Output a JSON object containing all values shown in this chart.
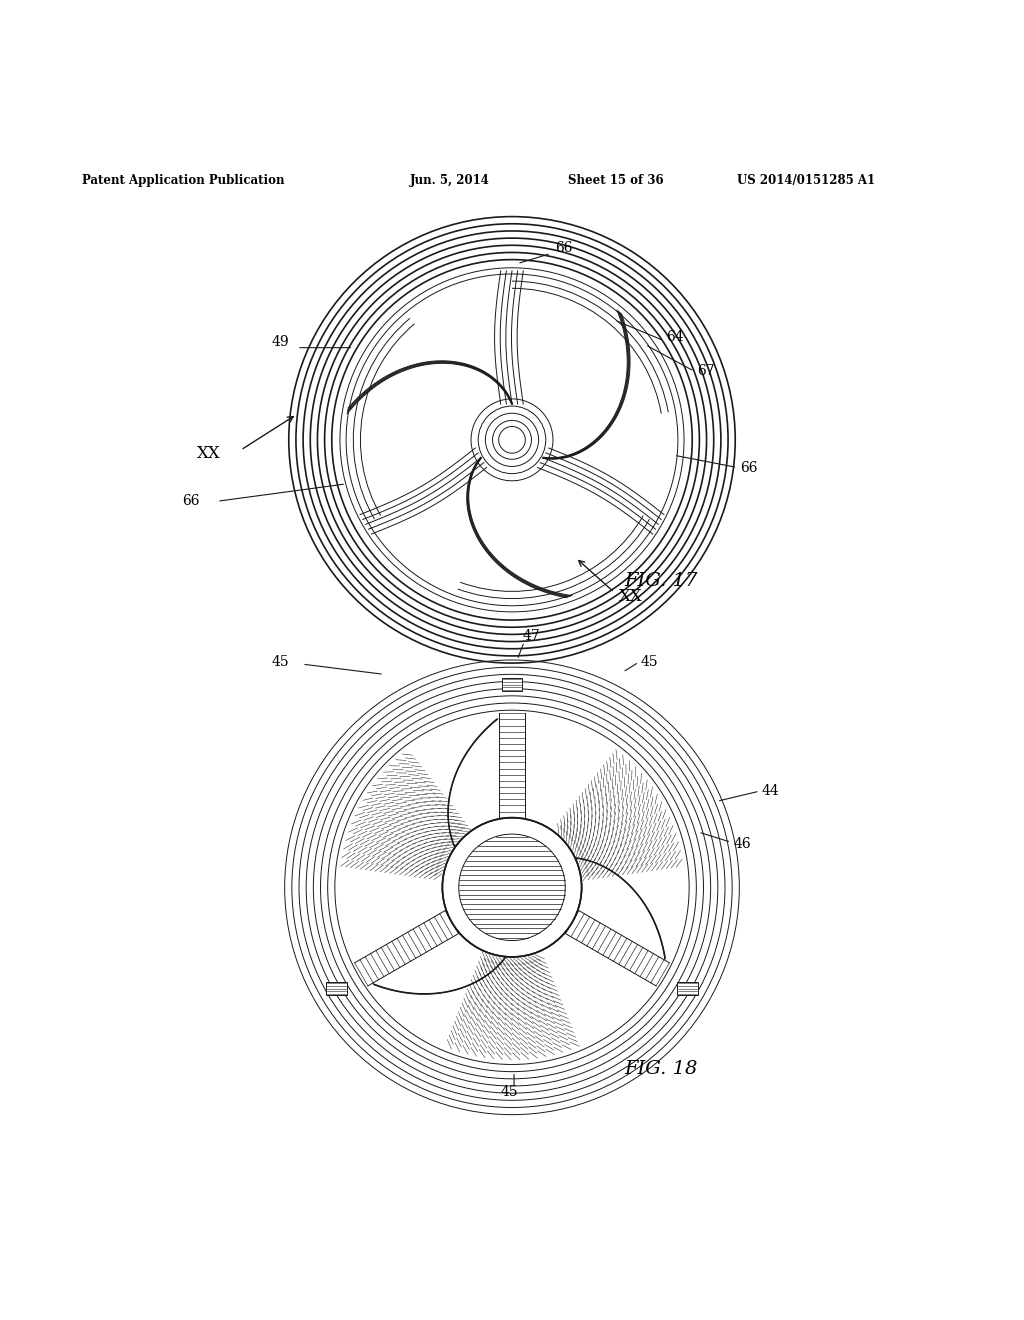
{
  "background_color": "#ffffff",
  "header_text": "Patent Application Publication",
  "header_date": "Jun. 5, 2014",
  "header_sheet": "Sheet 15 of 36",
  "header_patent": "US 2014/0151285 A1",
  "fig17_label": "FIG. 17",
  "fig18_label": "FIG. 18",
  "line_color": "#1a1a1a",
  "text_color": "#000000"
}
